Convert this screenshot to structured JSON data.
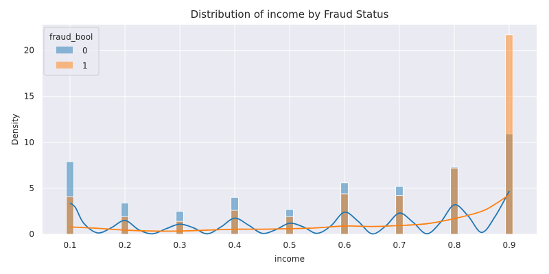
{
  "chart_data": {
    "type": "histogram",
    "title": "Distribution of income by Fraud Status",
    "xlabel": "income",
    "ylabel": "Density",
    "xlim": [
      0.05,
      0.95
    ],
    "ylim": [
      0,
      22.8
    ],
    "xticks": [
      0.1,
      0.2,
      0.3,
      0.4,
      0.5,
      0.6,
      0.7,
      0.8,
      0.9
    ],
    "xtick_labels": [
      "0.1",
      "0.2",
      "0.3",
      "0.4",
      "0.5",
      "0.6",
      "0.7",
      "0.8",
      "0.9"
    ],
    "yticks": [
      0,
      5,
      10,
      15,
      20
    ],
    "ytick_labels": [
      "0",
      "5",
      "10",
      "15",
      "20"
    ],
    "grid": true,
    "background": "#eaeaf2",
    "bin_width": 0.0133,
    "legend": {
      "title": "fraud_bool",
      "placement": "top-left"
    },
    "series": [
      {
        "name": "0",
        "color": "#1f77b4",
        "bins": [
          {
            "x": 0.1,
            "density": 7.9
          },
          {
            "x": 0.2,
            "density": 3.4
          },
          {
            "x": 0.3,
            "density": 2.5
          },
          {
            "x": 0.4,
            "density": 4.0
          },
          {
            "x": 0.5,
            "density": 2.7
          },
          {
            "x": 0.6,
            "density": 5.6
          },
          {
            "x": 0.7,
            "density": 5.2
          },
          {
            "x": 0.8,
            "density": 7.3
          },
          {
            "x": 0.9,
            "density": 10.9
          }
        ],
        "kde": [
          [
            0.1,
            3.4
          ],
          [
            0.11,
            2.9
          ],
          [
            0.125,
            1.2
          ],
          [
            0.15,
            0.15
          ],
          [
            0.175,
            0.7
          ],
          [
            0.2,
            1.5
          ],
          [
            0.225,
            0.5
          ],
          [
            0.25,
            0.05
          ],
          [
            0.275,
            0.6
          ],
          [
            0.3,
            1.1
          ],
          [
            0.325,
            0.7
          ],
          [
            0.35,
            0.05
          ],
          [
            0.375,
            0.8
          ],
          [
            0.4,
            1.75
          ],
          [
            0.425,
            1.0
          ],
          [
            0.45,
            0.1
          ],
          [
            0.475,
            0.5
          ],
          [
            0.5,
            1.2
          ],
          [
            0.525,
            0.8
          ],
          [
            0.55,
            0.1
          ],
          [
            0.575,
            0.9
          ],
          [
            0.6,
            2.4
          ],
          [
            0.625,
            1.4
          ],
          [
            0.65,
            0.05
          ],
          [
            0.675,
            0.9
          ],
          [
            0.7,
            2.3
          ],
          [
            0.725,
            1.3
          ],
          [
            0.75,
            0.05
          ],
          [
            0.775,
            1.3
          ],
          [
            0.8,
            3.2
          ],
          [
            0.825,
            2.0
          ],
          [
            0.85,
            0.2
          ],
          [
            0.875,
            2.0
          ],
          [
            0.9,
            4.7
          ]
        ]
      },
      {
        "name": "1",
        "color": "#ff7f0e",
        "bins": [
          {
            "x": 0.1,
            "density": 4.1
          },
          {
            "x": 0.2,
            "density": 1.9
          },
          {
            "x": 0.3,
            "density": 1.4
          },
          {
            "x": 0.4,
            "density": 2.6
          },
          {
            "x": 0.5,
            "density": 1.9
          },
          {
            "x": 0.6,
            "density": 4.4
          },
          {
            "x": 0.7,
            "density": 4.2
          },
          {
            "x": 0.8,
            "density": 7.2
          },
          {
            "x": 0.9,
            "density": 21.7
          }
        ],
        "kde": [
          [
            0.1,
            0.8
          ],
          [
            0.15,
            0.65
          ],
          [
            0.2,
            0.45
          ],
          [
            0.25,
            0.35
          ],
          [
            0.3,
            0.35
          ],
          [
            0.35,
            0.45
          ],
          [
            0.4,
            0.55
          ],
          [
            0.45,
            0.55
          ],
          [
            0.5,
            0.6
          ],
          [
            0.55,
            0.7
          ],
          [
            0.6,
            0.9
          ],
          [
            0.65,
            0.85
          ],
          [
            0.7,
            0.95
          ],
          [
            0.75,
            1.15
          ],
          [
            0.8,
            1.7
          ],
          [
            0.85,
            2.5
          ],
          [
            0.875,
            3.3
          ],
          [
            0.9,
            4.3
          ]
        ]
      }
    ]
  }
}
